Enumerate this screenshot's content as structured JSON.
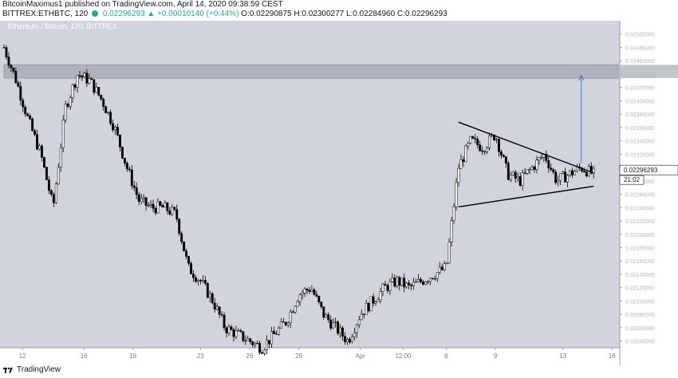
{
  "header": {
    "author_line": "BitcoinMaximus1 published on TradingView.com, April 14, 2020 09:38:59 CEST",
    "symbol": "BITTREX:ETHBTC, 120",
    "change": "0.02296293 ▲ +0.00010140 (+0.44%)",
    "ohlc": "O:0.02290875 H:0.02300277 L:0.02284960 C:0.02296293"
  },
  "watermark": "Ethereum / Bitcoin, 120, BITTREX",
  "footer": {
    "brand": "TradingView",
    "logo_icon": "tradingview-logo-icon"
  },
  "colors": {
    "background": "#d1d4dc",
    "zone": "#a4a8b3",
    "candle_up": "#ffffff",
    "candle_down": "#000000",
    "arrow": "#4a7bd0",
    "last_price_label": "#ffffff"
  },
  "chart_data": {
    "type": "candlestick",
    "title": "",
    "watermark": "Ethereum / Bitcoin, 120, BITTREX",
    "xlabel": "",
    "ylabel": "",
    "x_ticks": [
      "12",
      "16",
      "19",
      "23",
      "26",
      "29",
      "Apr",
      "12:00",
      "6",
      "9",
      "13",
      "16"
    ],
    "y_ticks": [
      "0.02500000",
      "0.02480000",
      "0.02460000",
      "0.02440000",
      "0.02420000",
      "0.02400000",
      "0.02380000",
      "0.02360000",
      "0.02340000",
      "0.02320000",
      "0.02300000",
      "0.02280000",
      "0.02260000",
      "0.02240000",
      "0.02220000",
      "0.02200000",
      "0.02180000",
      "0.02160000",
      "0.02140000",
      "0.02120000",
      "0.02100000",
      "0.02080000",
      "0.02060000",
      "0.02040000"
    ],
    "ylim": [
      0.0203,
      0.0252
    ],
    "last_price": "0.02296293",
    "countdown": "21:02",
    "resistance_zone": [
      0.02434,
      0.02454
    ],
    "price_path": [
      [
        0,
        0.0248
      ],
      [
        2,
        0.0243
      ],
      [
        4,
        0.0237
      ],
      [
        6,
        0.0232
      ],
      [
        8,
        0.0224
      ],
      [
        10,
        0.0239
      ],
      [
        12,
        0.0244
      ],
      [
        14,
        0.0243
      ],
      [
        16,
        0.024
      ],
      [
        18,
        0.0236
      ],
      [
        20,
        0.023
      ],
      [
        22,
        0.0225
      ],
      [
        24,
        0.0224
      ],
      [
        26,
        0.0224
      ],
      [
        28,
        0.0223
      ],
      [
        30,
        0.0215
      ],
      [
        32,
        0.0213
      ],
      [
        34,
        0.021
      ],
      [
        36,
        0.0206
      ],
      [
        38,
        0.0205
      ],
      [
        40,
        0.0204
      ],
      [
        42,
        0.0203
      ],
      [
        44,
        0.0205
      ],
      [
        46,
        0.0207
      ],
      [
        48,
        0.0211
      ],
      [
        50,
        0.0212
      ],
      [
        52,
        0.0208
      ],
      [
        54,
        0.0206
      ],
      [
        56,
        0.0204
      ],
      [
        58,
        0.0208
      ],
      [
        60,
        0.021
      ],
      [
        62,
        0.0212
      ],
      [
        64,
        0.0213
      ],
      [
        66,
        0.0212
      ],
      [
        68,
        0.0213
      ],
      [
        70,
        0.0214
      ],
      [
        72,
        0.0215
      ],
      [
        74,
        0.023
      ],
      [
        76,
        0.0234
      ],
      [
        78,
        0.0233
      ],
      [
        80,
        0.0235
      ],
      [
        82,
        0.0229
      ],
      [
        84,
        0.0228
      ],
      [
        86,
        0.023
      ],
      [
        88,
        0.0232
      ],
      [
        90,
        0.0228
      ],
      [
        92,
        0.0229
      ],
      [
        94,
        0.023
      ],
      [
        96,
        0.0229
      ]
    ],
    "annotations": {
      "triangle_upper": [
        [
          74,
          0.02368
        ],
        [
          96,
          0.02292
        ]
      ],
      "triangle_lower": [
        [
          74,
          0.02241
        ],
        [
          96,
          0.02272
        ]
      ],
      "target_arrow": [
        [
          94,
          0.02307
        ],
        [
          94,
          0.02438
        ]
      ]
    }
  }
}
